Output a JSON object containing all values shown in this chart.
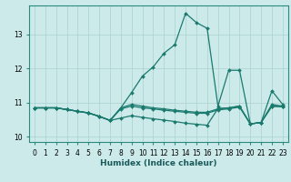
{
  "title": "",
  "xlabel": "Humidex (Indice chaleur)",
  "background_color": "#cceaea",
  "grid_color": "#aacfcf",
  "line_color": "#1a7a6e",
  "xlim": [
    -0.5,
    23.5
  ],
  "ylim": [
    9.85,
    13.85
  ],
  "yticks": [
    10,
    11,
    12,
    13
  ],
  "xticks": [
    0,
    1,
    2,
    3,
    4,
    5,
    6,
    7,
    8,
    9,
    10,
    11,
    12,
    13,
    14,
    15,
    16,
    17,
    18,
    19,
    20,
    21,
    22,
    23
  ],
  "series": [
    [
      10.85,
      10.85,
      10.85,
      10.8,
      10.75,
      10.7,
      10.6,
      10.48,
      10.85,
      11.3,
      11.78,
      12.05,
      12.45,
      12.7,
      13.62,
      13.35,
      13.18,
      10.9,
      11.95,
      11.95,
      10.38,
      10.42,
      11.35,
      10.95
    ],
    [
      10.85,
      10.85,
      10.85,
      10.8,
      10.75,
      10.7,
      10.6,
      10.48,
      10.85,
      10.95,
      10.9,
      10.85,
      10.82,
      10.78,
      10.75,
      10.72,
      10.72,
      10.82,
      10.85,
      10.9,
      10.38,
      10.42,
      10.95,
      10.9
    ],
    [
      10.85,
      10.85,
      10.85,
      10.8,
      10.75,
      10.7,
      10.6,
      10.48,
      10.82,
      10.9,
      10.85,
      10.82,
      10.78,
      10.75,
      10.72,
      10.69,
      10.69,
      10.79,
      10.82,
      10.87,
      10.38,
      10.42,
      10.9,
      10.88
    ],
    [
      10.85,
      10.85,
      10.85,
      10.8,
      10.75,
      10.7,
      10.6,
      10.48,
      10.55,
      10.62,
      10.57,
      10.53,
      10.49,
      10.45,
      10.4,
      10.37,
      10.34,
      10.83,
      10.85,
      10.9,
      10.38,
      10.42,
      10.9,
      10.88
    ]
  ],
  "xlabel_fontsize": 6.5,
  "tick_fontsize": 5.5,
  "linewidth": 0.9,
  "markersize": 2.0
}
